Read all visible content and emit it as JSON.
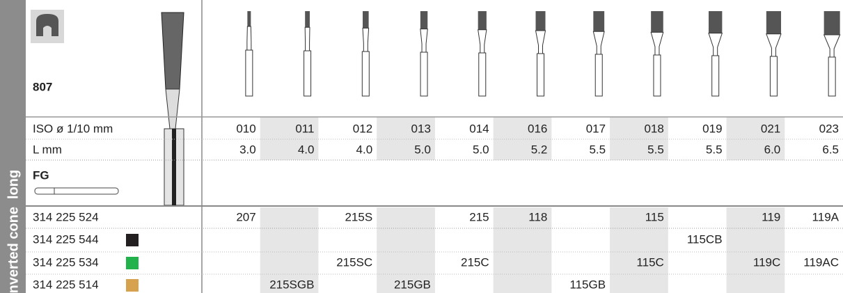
{
  "side_labels": [
    "long",
    "Inverted cone"
  ],
  "product": "807",
  "iso_label": "ISO ø 1/10 mm",
  "length_label": "L mm",
  "shank_label": "FG",
  "sizes": [
    "010",
    "011",
    "012",
    "013",
    "014",
    "016",
    "017",
    "018",
    "019",
    "021",
    "023"
  ],
  "lengths": [
    "3.0",
    "4.0",
    "4.0",
    "5.0",
    "5.0",
    "5.2",
    "5.5",
    "5.5",
    "5.5",
    "6.0",
    "6.5"
  ],
  "rows": [
    {
      "code": "314 225 524",
      "cells": [
        "207",
        null,
        "215S",
        null,
        "215",
        "118",
        null,
        "115",
        null,
        "119",
        "119A"
      ]
    },
    {
      "code": "314 225 544",
      "color": "#231f20",
      "cells": [
        null,
        null,
        null,
        null,
        null,
        null,
        null,
        null,
        "115CB",
        null,
        null
      ]
    },
    {
      "code": "314 225 534",
      "color": "#22b24c",
      "cells": [
        null,
        null,
        "215SC",
        null,
        "215C",
        null,
        null,
        "115C",
        null,
        "119C",
        "119AC"
      ]
    },
    {
      "code": "314 225 514",
      "color": "#d6a24e",
      "cells": [
        null,
        "215SGB",
        null,
        "215GB",
        null,
        null,
        "115GB",
        null,
        null,
        null,
        null
      ]
    }
  ]
}
